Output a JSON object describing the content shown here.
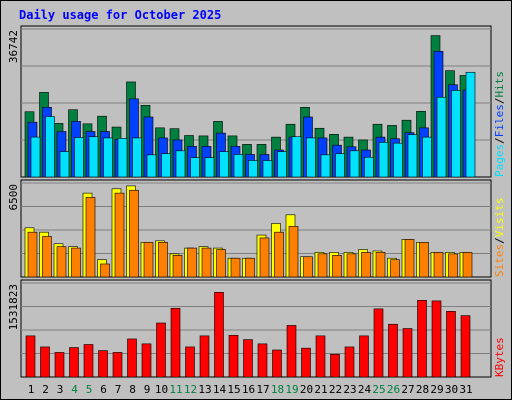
{
  "chart_data": {
    "type": "bar",
    "title": "Daily usage for October 2025",
    "categories": [
      "1",
      "2",
      "3",
      "4",
      "5",
      "6",
      "7",
      "8",
      "9",
      "10",
      "11",
      "12",
      "13",
      "14",
      "15",
      "16",
      "17",
      "18",
      "19",
      "20",
      "21",
      "22",
      "23",
      "24",
      "25",
      "26",
      "27",
      "28",
      "29",
      "30",
      "31"
    ],
    "weekend_days": [
      "4",
      "5",
      "11",
      "12",
      "18",
      "19",
      "25",
      "26"
    ],
    "panels": [
      {
        "name": "hits-files-pages",
        "ylim": [
          0,
          36742
        ],
        "ytick_label": "36742",
        "ylabel_parts": [
          "Pages",
          "/",
          "Files",
          "/",
          "Hits"
        ],
        "series": [
          {
            "name": "Hits",
            "color": "#008040",
            "values": [
              16200,
              21000,
              13300,
              16700,
              13200,
              15100,
              12400,
              23600,
              17800,
              12200,
              12000,
              10300,
              10200,
              13800,
              10200,
              8100,
              8100,
              9900,
              13100,
              17300,
              12100,
              10600,
              9900,
              9200,
              13100,
              12800,
              14100,
              16300,
              35100,
              26400,
              25200
            ]
          },
          {
            "name": "Files",
            "color": "#0040ff",
            "values": [
              13600,
              17300,
              11300,
              13800,
              11300,
              11300,
              9300,
              19400,
              14900,
              9700,
              9200,
              7600,
              7600,
              10900,
              7600,
              5600,
              5600,
              6700,
              9900,
              14900,
              9700,
              7900,
              7500,
              6700,
              9900,
              9500,
              11000,
              12200,
              31200,
              22900,
              21600
            ]
          },
          {
            "name": "Pages",
            "color": "#00e0ff",
            "values": [
              9900,
              15000,
              6300,
              9800,
              10000,
              9700,
              9600,
              9700,
              5500,
              5800,
              6500,
              4800,
              4800,
              6300,
              5600,
              4100,
              4100,
              6300,
              10000,
              9700,
              5500,
              5800,
              6500,
              4900,
              8600,
              8400,
              10500,
              9900,
              19800,
              21500,
              26000
            ]
          }
        ]
      },
      {
        "name": "visits-sites",
        "ylim": [
          0,
          6500
        ],
        "ytick_label": "6500",
        "ylabel_parts": [
          "Sites",
          "/",
          "Visits"
        ],
        "series": [
          {
            "name": "Visits",
            "color": "#ffff00",
            "values": [
              3400,
              3100,
              2300,
              2100,
              5800,
              1200,
              6100,
              6300,
              2400,
              2500,
              1600,
              2000,
              2100,
              2000,
              1300,
              1300,
              2900,
              3700,
              4300,
              1400,
              1700,
              1700,
              1700,
              1900,
              1800,
              1300,
              2600,
              2400,
              1700,
              1700,
              1700
            ]
          },
          {
            "name": "Sites",
            "color": "#ff8000",
            "values": [
              3100,
              2800,
              2100,
              2000,
              5500,
              900,
              5800,
              6000,
              2400,
              2400,
              1500,
              2000,
              2000,
              1900,
              1300,
              1300,
              2700,
              3100,
              3500,
              1400,
              1600,
              1500,
              1600,
              1700,
              1700,
              1200,
              2600,
              2400,
              1700,
              1600,
              1700
            ]
          }
        ]
      },
      {
        "name": "kbytes",
        "ylim": [
          0,
          1531823
        ],
        "ytick_label": "1531823",
        "ylabel_parts": [
          "KBytes"
        ],
        "series": [
          {
            "name": "KBytes",
            "color": "#ff0000",
            "values": [
              670000,
              490000,
              400000,
              480000,
              530000,
              430000,
              400000,
              620000,
              540000,
              880000,
              1120000,
              490000,
              670000,
              1380000,
              680000,
              610000,
              540000,
              440000,
              840000,
              470000,
              670000,
              370000,
              490000,
              670000,
              1110000,
              860000,
              790000,
              1250000,
              1240000,
              1070000,
              1000000
            ]
          }
        ]
      }
    ],
    "colors": {
      "title": "#0000ff",
      "plot_bg": "#c0c0c0",
      "frame": "#000000",
      "gridline": "#808080",
      "day_weekday": "#000000",
      "day_weekend": "#008040"
    }
  }
}
